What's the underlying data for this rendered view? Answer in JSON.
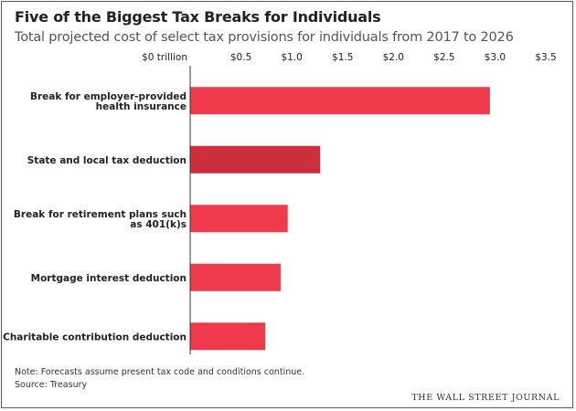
{
  "colors": {
    "bar": "#ee3a4a",
    "bar_highlight": "#cc2e3c",
    "axis": "#333333",
    "grid": "#dddddd"
  },
  "chart_data": {
    "type": "bar",
    "orientation": "horizontal",
    "title": "Five of the Biggest Tax Breaks for Individuals",
    "subtitle": "Total projected cost of select tax provisions for individuals from 2017 to 2026",
    "categories": [
      "Break for employer-provided health insurance",
      "State and local tax deduction",
      "Break for retirement plans such as 401(k)s",
      "Mortgage interest deduction",
      "Charitable contribution deduction"
    ],
    "category_lines": [
      [
        "Break for employer-provided",
        "health insurance"
      ],
      [
        "State and local tax deduction"
      ],
      [
        "Break for retirement plans such",
        "as 401(k)s"
      ],
      [
        "Mortgage interest deduction"
      ],
      [
        "Charitable contribution deduction"
      ]
    ],
    "values": [
      2.95,
      1.28,
      0.96,
      0.89,
      0.74
    ],
    "highlight_index": 1,
    "xlim": [
      0,
      3.5
    ],
    "xticks": [
      0,
      0.5,
      1.0,
      1.5,
      2.0,
      2.5,
      3.0,
      3.5
    ],
    "xtick_labels": [
      "$0 trillion",
      "$0.5",
      "$1.0",
      "$1.5",
      "$2.0",
      "$2.5",
      "$3.0",
      "$3.5"
    ],
    "xlabel": "",
    "ylabel": ""
  },
  "footer": {
    "note": "Note: Forecasts assume present tax code and conditions continue.",
    "source": "Source: Treasury",
    "brand": "THE WALL STREET JOURNAL"
  }
}
